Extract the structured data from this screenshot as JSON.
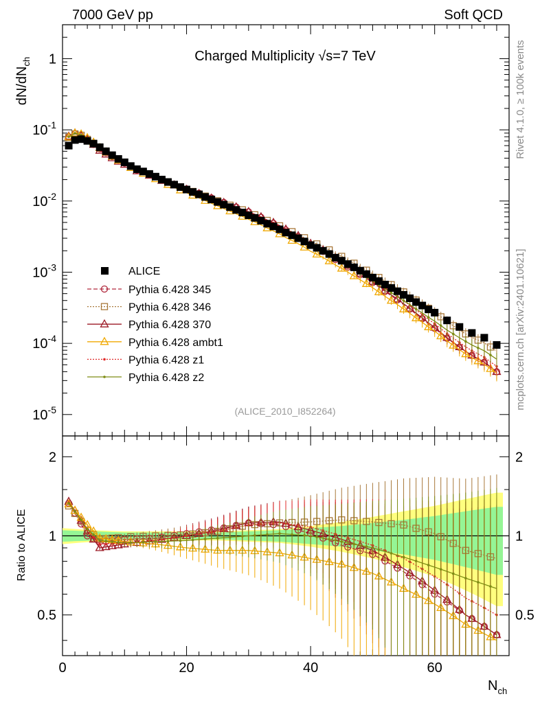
{
  "header": {
    "left": "7000 GeV pp",
    "right": "Soft QCD"
  },
  "side_labels": {
    "rivet": "Rivet 4.1.0, ≥ 100k events",
    "mcplots": "mcplots.cern.ch [arXiv:2401.10621]"
  },
  "chart_data": {
    "type": "line",
    "title": "Charged Multiplicity √s=7 TeV",
    "analysis_tag": "(ALICE_2010_I852264)",
    "xlabel": "N_ch",
    "ylabel": "dN/dN_ch",
    "ratio_ylabel": "Ratio to ALICE",
    "xlim": [
      0,
      72
    ],
    "ylim": [
      5e-06,
      3
    ],
    "yscale": "log",
    "ratio_ylim": [
      0.35,
      2.4
    ],
    "x_ticks": [
      "0",
      "20",
      "40",
      "60"
    ],
    "y_ticks": [
      "10^-5",
      "10^-4",
      "10^-3",
      "10^-2",
      "10^-1",
      "1"
    ],
    "ratio_ticks": [
      "0.5",
      "1",
      "2"
    ],
    "legend_position": "center-left",
    "reference": {
      "name": "ALICE",
      "x": [
        1,
        2,
        3,
        4,
        5,
        6,
        7,
        8,
        9,
        10,
        11,
        12,
        13,
        14,
        15,
        16,
        17,
        18,
        19,
        20,
        21,
        22,
        23,
        24,
        25,
        26,
        27,
        28,
        29,
        30,
        31,
        32,
        33,
        34,
        35,
        36,
        37,
        38,
        39,
        40,
        41,
        42,
        43,
        44,
        45,
        46,
        47,
        48,
        49,
        50,
        51,
        52,
        53,
        54,
        55,
        56,
        57,
        58,
        59,
        60,
        62,
        64,
        66,
        68,
        70
      ],
      "y": [
        0.06,
        0.072,
        0.074,
        0.07,
        0.064,
        0.057,
        0.05,
        0.044,
        0.039,
        0.035,
        0.031,
        0.028,
        0.026,
        0.024,
        0.022,
        0.02,
        0.0185,
        0.017,
        0.0157,
        0.0145,
        0.0134,
        0.0124,
        0.0114,
        0.0105,
        0.0097,
        0.0089,
        0.0082,
        0.0075,
        0.0069,
        0.0063,
        0.0058,
        0.0053,
        0.0048,
        0.0044,
        0.004,
        0.0036,
        0.0033,
        0.003,
        0.0027,
        0.0024,
        0.0022,
        0.002,
        0.0018,
        0.0016,
        0.00145,
        0.0013,
        0.00117,
        0.00105,
        0.00094,
        0.00084,
        0.00075,
        0.00067,
        0.0006,
        0.00054,
        0.00048,
        0.00043,
        0.00038,
        0.00034,
        0.0003,
        0.00027,
        0.00021,
        0.00017,
        0.00014,
        0.00012,
        9.5e-05
      ]
    },
    "band_x": [
      0,
      5,
      10,
      15,
      20,
      25,
      30,
      35,
      40,
      45,
      50,
      55,
      60,
      65,
      70
    ],
    "band_stat": [
      0.05,
      0.04,
      0.03,
      0.03,
      0.03,
      0.03,
      0.04,
      0.05,
      0.07,
      0.09,
      0.12,
      0.15,
      0.19,
      0.24,
      0.29
    ],
    "band_total": [
      0.07,
      0.05,
      0.04,
      0.04,
      0.04,
      0.04,
      0.05,
      0.06,
      0.09,
      0.13,
      0.18,
      0.24,
      0.3,
      0.38,
      0.46
    ],
    "series": [
      {
        "name": "Pythia 6.428 345",
        "color": "#b0283c",
        "marker": "circle",
        "dash": "6,3",
        "ratio_pts": [
          [
            1,
            1.33
          ],
          [
            4,
            1.0
          ],
          [
            6,
            0.95
          ],
          [
            10,
            0.97
          ],
          [
            15,
            0.98
          ],
          [
            20,
            1.02
          ],
          [
            25,
            1.06
          ],
          [
            30,
            1.12
          ],
          [
            35,
            1.1
          ],
          [
            40,
            1.02
          ],
          [
            45,
            0.92
          ],
          [
            50,
            0.85
          ],
          [
            55,
            0.73
          ],
          [
            60,
            0.6
          ],
          [
            65,
            0.5
          ],
          [
            70,
            0.42
          ]
        ]
      },
      {
        "name": "Pythia 6.428 346",
        "color": "#a8783a",
        "marker": "square",
        "dash": "2,2",
        "ratio_pts": [
          [
            1,
            1.3
          ],
          [
            4,
            1.05
          ],
          [
            6,
            0.97
          ],
          [
            10,
            0.99
          ],
          [
            15,
            1.0
          ],
          [
            20,
            1.01
          ],
          [
            25,
            1.04
          ],
          [
            30,
            1.1
          ],
          [
            35,
            1.12
          ],
          [
            40,
            1.13
          ],
          [
            45,
            1.15
          ],
          [
            50,
            1.13
          ],
          [
            55,
            1.1
          ],
          [
            60,
            1.02
          ],
          [
            65,
            0.88
          ],
          [
            70,
            0.82
          ]
        ]
      },
      {
        "name": "Pythia 6.428 370",
        "color": "#9c1a26",
        "marker": "triangle",
        "dash": "",
        "ratio_pts": [
          [
            1,
            1.35
          ],
          [
            4,
            1.04
          ],
          [
            6,
            0.9
          ],
          [
            10,
            0.93
          ],
          [
            15,
            0.96
          ],
          [
            20,
            1.0
          ],
          [
            25,
            1.05
          ],
          [
            30,
            1.12
          ],
          [
            35,
            1.13
          ],
          [
            40,
            1.05
          ],
          [
            45,
            0.97
          ],
          [
            50,
            0.88
          ],
          [
            55,
            0.75
          ],
          [
            60,
            0.62
          ],
          [
            65,
            0.5
          ],
          [
            70,
            0.42
          ]
        ]
      },
      {
        "name": "Pythia 6.428 ambt1",
        "color": "#f0a800",
        "marker": "triangle",
        "dash": "",
        "ratio_pts": [
          [
            1,
            1.32
          ],
          [
            4,
            1.1
          ],
          [
            6,
            0.98
          ],
          [
            10,
            0.95
          ],
          [
            15,
            0.93
          ],
          [
            20,
            0.9
          ],
          [
            25,
            0.88
          ],
          [
            30,
            0.88
          ],
          [
            35,
            0.86
          ],
          [
            40,
            0.82
          ],
          [
            45,
            0.78
          ],
          [
            50,
            0.72
          ],
          [
            55,
            0.63
          ],
          [
            60,
            0.55
          ],
          [
            65,
            0.46
          ],
          [
            70,
            0.4
          ]
        ]
      },
      {
        "name": "Pythia 6.428 z1",
        "color": "#e02828",
        "marker": "dot",
        "dash": "2,2",
        "ratio_pts": [
          [
            1,
            1.34
          ],
          [
            4,
            1.05
          ],
          [
            6,
            0.93
          ],
          [
            10,
            0.94
          ],
          [
            15,
            0.96
          ],
          [
            20,
            1.0
          ],
          [
            25,
            1.04
          ],
          [
            30,
            1.1
          ],
          [
            35,
            1.12
          ],
          [
            40,
            1.08
          ],
          [
            45,
            1.0
          ],
          [
            50,
            0.92
          ],
          [
            55,
            0.82
          ],
          [
            60,
            0.7
          ],
          [
            65,
            0.58
          ],
          [
            70,
            0.5
          ]
        ]
      },
      {
        "name": "Pythia 6.428 z2",
        "color": "#7e8c14",
        "marker": "dot",
        "dash": "",
        "ratio_pts": [
          [
            1,
            1.33
          ],
          [
            4,
            1.06
          ],
          [
            6,
            0.96
          ],
          [
            10,
            0.94
          ],
          [
            15,
            0.95
          ],
          [
            20,
            0.96
          ],
          [
            25,
            0.98
          ],
          [
            30,
            1.0
          ],
          [
            35,
            1.02
          ],
          [
            40,
            1.0
          ],
          [
            45,
            0.95
          ],
          [
            50,
            0.9
          ],
          [
            55,
            0.83
          ],
          [
            60,
            0.76
          ],
          [
            65,
            0.69
          ],
          [
            70,
            0.63
          ]
        ]
      }
    ]
  }
}
